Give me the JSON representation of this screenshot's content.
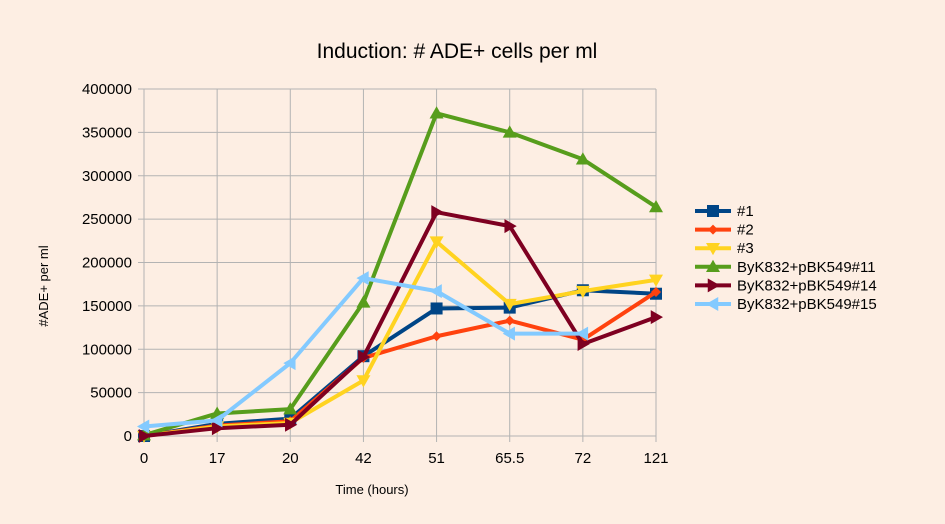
{
  "chart_data": {
    "type": "line",
    "title": "Induction: # ADE+ cells per ml",
    "xlabel": "Time (hours)",
    "ylabel": "#ADE+ per ml",
    "categories": [
      "0",
      "17",
      "20",
      "42",
      "51",
      "65.5",
      "72",
      "121"
    ],
    "ylim": [
      0,
      400000
    ],
    "yticks": [
      "0",
      "50000",
      "100000",
      "150000",
      "200000",
      "250000",
      "300000",
      "350000",
      "400000"
    ],
    "grid": true,
    "legend_position": "right",
    "series": [
      {
        "name": "#1",
        "color": "#004586",
        "marker": "square",
        "values": [
          0,
          14000,
          20000,
          92000,
          147000,
          148000,
          168000,
          164000
        ]
      },
      {
        "name": "#2",
        "color": "#ff420e",
        "marker": "diamond",
        "values": [
          0,
          12000,
          17000,
          90000,
          115000,
          133000,
          111000,
          166000
        ]
      },
      {
        "name": "#3",
        "color": "#ffd320",
        "marker": "triangle-down",
        "values": [
          0,
          11000,
          15000,
          64000,
          224000,
          152000,
          167000,
          180000
        ]
      },
      {
        "name": "ByK832+pBK549#11",
        "color": "#579d1c",
        "marker": "triangle-up",
        "values": [
          1000,
          26000,
          31000,
          154000,
          372000,
          350000,
          319000,
          264000
        ]
      },
      {
        "name": "ByK832+pBK549#14",
        "color": "#7e0021",
        "marker": "triangle-right",
        "values": [
          0,
          9000,
          13000,
          91000,
          258000,
          242000,
          106000,
          137000
        ]
      },
      {
        "name": "ByK832+pBK549#15",
        "color": "#83caff",
        "marker": "triangle-left",
        "values": [
          11000,
          18000,
          84000,
          182000,
          167000,
          118000,
          118000,
          null
        ]
      }
    ]
  }
}
